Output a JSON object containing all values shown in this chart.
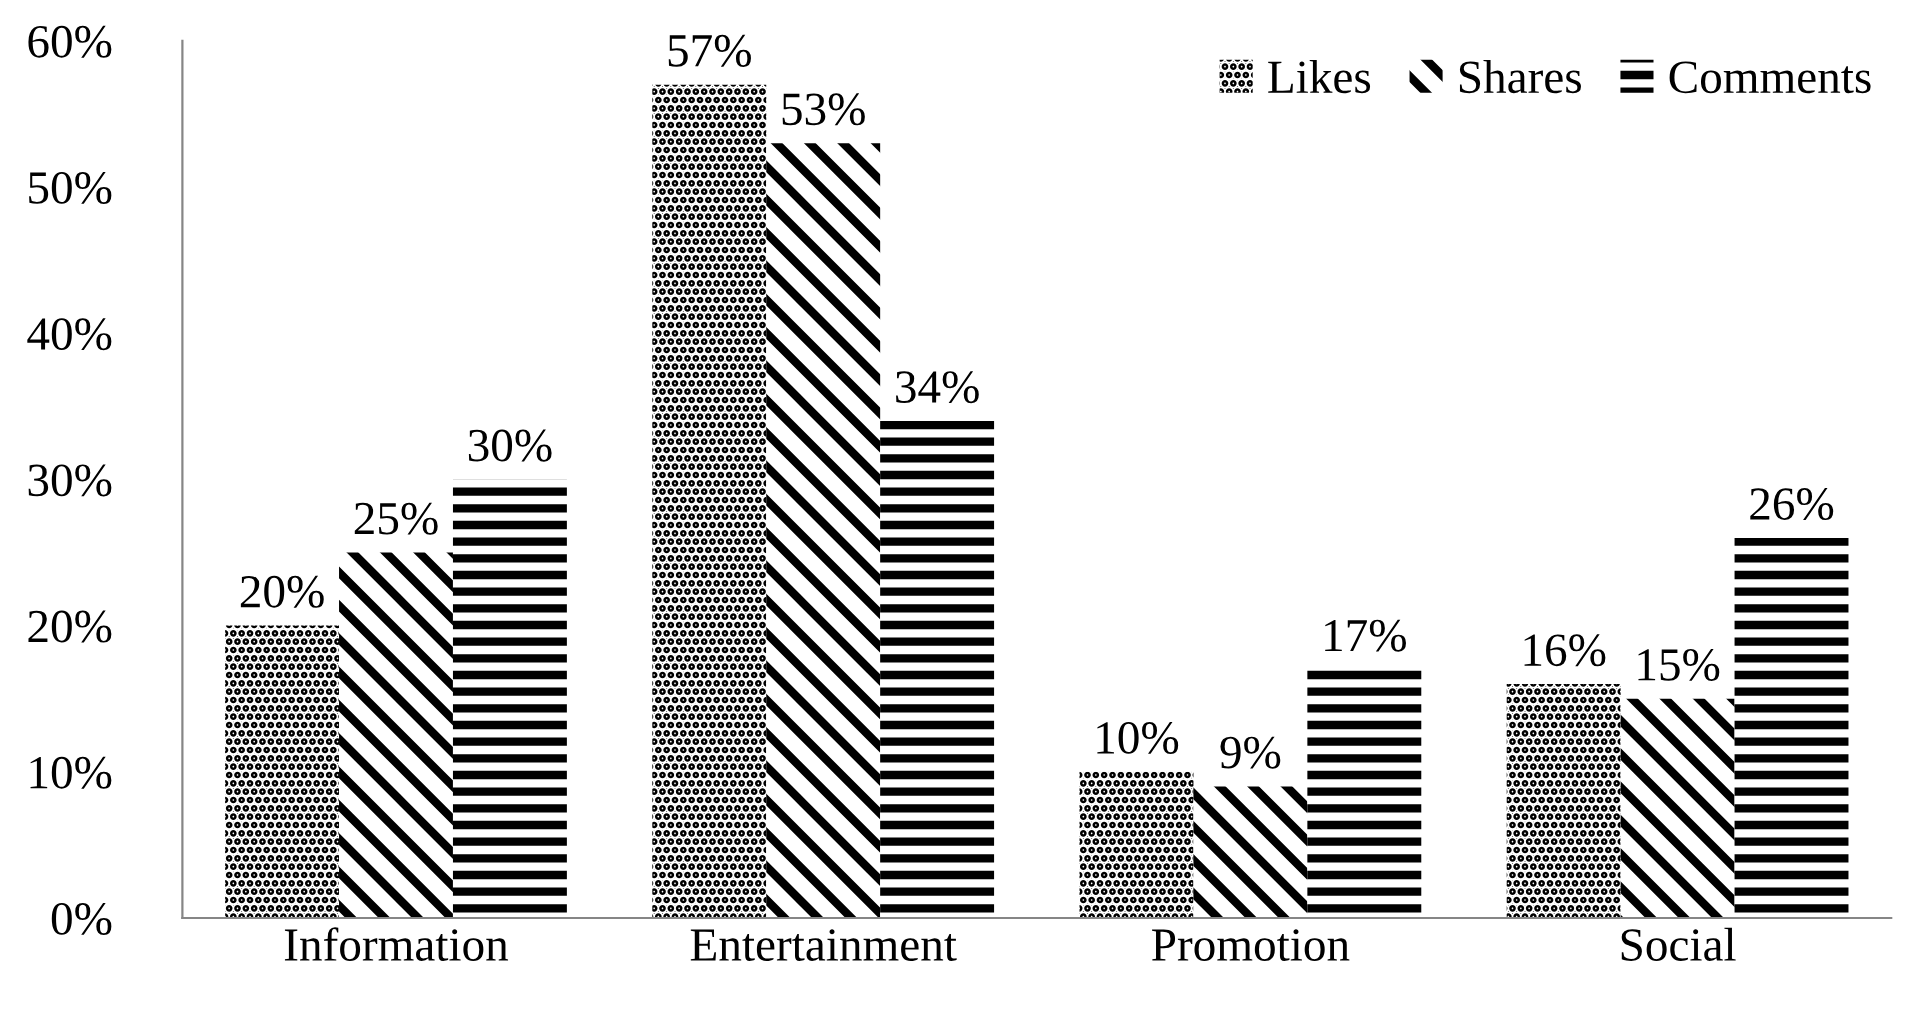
{
  "chart_data": {
    "type": "bar",
    "categories": [
      "Information",
      "Entertainment",
      "Promotion",
      "Social"
    ],
    "series": [
      {
        "name": "Likes",
        "color": "#000000",
        "values": [
          20,
          57,
          10,
          16
        ],
        "value_labels": [
          "20%",
          "57%",
          "10%",
          "16%"
        ]
      },
      {
        "name": "Shares",
        "color": "#000000",
        "values": [
          25,
          53,
          9,
          15
        ],
        "value_labels": [
          "25%",
          "53%",
          "9%",
          "15%"
        ]
      },
      {
        "name": "Comments",
        "color": "#000000",
        "values": [
          30,
          34,
          17,
          26
        ],
        "value_labels": [
          "30%",
          "34%",
          "17%",
          "26%"
        ]
      }
    ],
    "ylim": [
      0,
      60
    ],
    "yticks": [
      {
        "value": 0,
        "label": "0%"
      },
      {
        "value": 10,
        "label": "10%"
      },
      {
        "value": 20,
        "label": "20%"
      },
      {
        "value": 30,
        "label": "30%"
      },
      {
        "value": 40,
        "label": "40%"
      },
      {
        "value": 50,
        "label": "50%"
      },
      {
        "value": 60,
        "label": "60%"
      }
    ],
    "grid": false,
    "legend": "top right"
  }
}
